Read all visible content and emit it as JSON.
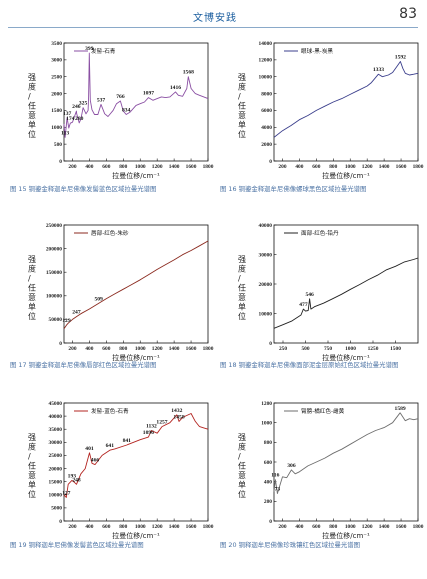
{
  "header": {
    "title": "文博安践",
    "page_number": "83"
  },
  "chart_data": [
    {
      "type": "line",
      "caption": "图 15  铜鎏金释迦牟尼佛像发髻蓝色区域拉曼光谱图",
      "legend": "发髻-石青",
      "ylabel": "强度/任意单位",
      "xlabel": "拉曼位移/cm⁻¹",
      "xlim": [
        100,
        1800
      ],
      "ylim": [
        0,
        3500
      ],
      "yticks": [
        0,
        500,
        1000,
        1500,
        2000,
        2500,
        3000,
        3500
      ],
      "xticks": [
        200,
        400,
        600,
        800,
        1000,
        1200,
        1400,
        1600,
        1800
      ],
      "color": "#8a4fa3",
      "series": {
        "x": [
          100,
          113,
          137,
          157,
          174,
          200,
          246,
          250,
          280,
          300,
          325,
          360,
          385,
          390,
          399,
          410,
          430,
          460,
          500,
          537,
          580,
          620,
          680,
          720,
          766,
          800,
          834,
          880,
          950,
          1000,
          1050,
          1097,
          1150,
          1200,
          1250,
          1300,
          1350,
          1416,
          1450,
          1500,
          1550,
          1568,
          1600,
          1650,
          1700,
          1750,
          1800
        ],
        "y": [
          1100,
          700,
          1280,
          980,
          1120,
          1150,
          1480,
          1400,
          1130,
          1250,
          1580,
          1400,
          1500,
          1900,
          3200,
          1800,
          1520,
          1380,
          1380,
          1680,
          1400,
          1320,
          1500,
          1700,
          1780,
          1480,
          1380,
          1450,
          1650,
          1700,
          1750,
          1880,
          1800,
          1850,
          1900,
          1880,
          1900,
          2050,
          1950,
          1920,
          2150,
          2500,
          2150,
          2000,
          1950,
          1900,
          1850
        ]
      },
      "annotations": [
        {
          "label": "113",
          "x": 113,
          "y": 700
        },
        {
          "label": "137",
          "x": 137,
          "y": 1280
        },
        {
          "label": "174",
          "x": 174,
          "y": 1120
        },
        {
          "label": "246",
          "x": 246,
          "y": 1480
        },
        {
          "label": "280",
          "x": 280,
          "y": 1130
        },
        {
          "label": "325",
          "x": 325,
          "y": 1580
        },
        {
          "label": "399",
          "x": 399,
          "y": 3200
        },
        {
          "label": "537",
          "x": 537,
          "y": 1680
        },
        {
          "label": "766",
          "x": 766,
          "y": 1780
        },
        {
          "label": "834",
          "x": 834,
          "y": 1380
        },
        {
          "label": "1097",
          "x": 1097,
          "y": 1880
        },
        {
          "label": "1416",
          "x": 1416,
          "y": 2050
        },
        {
          "label": "1568",
          "x": 1568,
          "y": 2500
        }
      ]
    },
    {
      "type": "line",
      "caption": "图 16  铜鎏金释迦牟尼佛像螺球黑色区域拉曼光谱图",
      "legend": "眼球-黑-炭黑",
      "ylabel": "强度/任意单位",
      "xlabel": "拉曼位移/cm⁻¹",
      "xlim": [
        100,
        1800
      ],
      "ylim": [
        0,
        14000
      ],
      "yticks": [
        0,
        2000,
        4000,
        6000,
        8000,
        10000,
        12000,
        14000
      ],
      "xticks": [
        200,
        400,
        600,
        800,
        1000,
        1200,
        1400,
        1600,
        1800
      ],
      "color": "#3b3f8c",
      "series": {
        "x": [
          100,
          200,
          300,
          400,
          500,
          600,
          700,
          800,
          900,
          1000,
          1100,
          1200,
          1250,
          1300,
          1333,
          1380,
          1450,
          1500,
          1550,
          1592,
          1620,
          1650,
          1700,
          1750,
          1800
        ],
        "y": [
          2800,
          3600,
          4200,
          4900,
          5400,
          6000,
          6500,
          7000,
          7400,
          7900,
          8400,
          8900,
          9300,
          9900,
          10300,
          10000,
          10200,
          10500,
          11200,
          11800,
          11000,
          10400,
          10200,
          10300,
          10400
        ]
      },
      "annotations": [
        {
          "label": "1333",
          "x": 1333,
          "y": 10300
        },
        {
          "label": "1592",
          "x": 1592,
          "y": 11800
        }
      ]
    },
    {
      "type": "line",
      "caption": "图 17  铜鎏金释迦牟尼佛像唇部红色区域拉曼光谱图",
      "legend": "唇部-红色-朱砂",
      "ylabel": "强度/任意单位",
      "xlabel": "拉曼位移/cm⁻¹",
      "xlim": [
        100,
        1800
      ],
      "ylim": [
        0,
        250000
      ],
      "yticks": [
        0,
        50000,
        100000,
        150000,
        200000,
        250000
      ],
      "xticks": [
        200,
        400,
        600,
        800,
        1000,
        1200,
        1400,
        1600,
        1800
      ],
      "color": "#8b2a1f",
      "series": {
        "x": [
          100,
          129,
          150,
          200,
          247,
          300,
          400,
          509,
          600,
          700,
          800,
          900,
          1000,
          1100,
          1200,
          1300,
          1400,
          1500,
          1600,
          1700,
          1800
        ],
        "y": [
          30000,
          38000,
          42000,
          50000,
          56000,
          62000,
          72000,
          84000,
          94000,
          104000,
          114000,
          124000,
          134000,
          145000,
          156000,
          166000,
          176000,
          187000,
          196000,
          206000,
          216000
        ]
      },
      "annotations": [
        {
          "label": "129",
          "x": 129,
          "y": 38000
        },
        {
          "label": "247",
          "x": 247,
          "y": 56000
        },
        {
          "label": "509",
          "x": 509,
          "y": 84000
        }
      ]
    },
    {
      "type": "line",
      "caption": "图 18  铜鎏金释迦牟尼佛像面部泥金层原始红色区域拉曼光谱图",
      "legend": "面部-红色-铅丹",
      "ylabel": "强度/任意单位",
      "xlabel": "拉曼位移/cm⁻¹",
      "xlim": [
        150,
        1750
      ],
      "ylim": [
        0,
        40000
      ],
      "yticks": [
        0,
        10000,
        20000,
        30000,
        40000
      ],
      "xticks": [
        250,
        500,
        750,
        1000,
        1250,
        1500
      ],
      "color": "#222222",
      "series": {
        "x": [
          150,
          250,
          350,
          450,
          477,
          500,
          530,
          546,
          560,
          600,
          700,
          800,
          900,
          1000,
          1100,
          1200,
          1300,
          1400,
          1500,
          1600,
          1700,
          1750
        ],
        "y": [
          5000,
          6200,
          7500,
          9500,
          11500,
          10800,
          11000,
          15000,
          11500,
          12300,
          13500,
          15000,
          16500,
          18200,
          19800,
          21500,
          23000,
          24800,
          26000,
          27500,
          28300,
          28800
        ]
      },
      "annotations": [
        {
          "label": "477",
          "x": 477,
          "y": 11500
        },
        {
          "label": "546",
          "x": 546,
          "y": 15000
        }
      ]
    },
    {
      "type": "line",
      "caption": "图 19  铜释迦牟尼佛像发髻蓝色区域拉曼光谱图",
      "legend": "发髻-蓝色-石青",
      "ylabel": "强度/任意单位",
      "xlabel": "拉曼位移/cm⁻¹",
      "xlim": [
        100,
        1800
      ],
      "ylim": [
        0,
        45000
      ],
      "yticks": [
        0,
        5000,
        10000,
        15000,
        20000,
        25000,
        30000,
        35000,
        40000,
        45000
      ],
      "xticks": [
        200,
        400,
        600,
        800,
        1000,
        1200,
        1400,
        1600,
        1800
      ],
      "color": "#b32420",
      "series": {
        "x": [
          100,
          127,
          150,
          193,
          220,
          248,
          300,
          350,
          401,
          430,
          466,
          550,
          641,
          700,
          841,
          1000,
          1096,
          1132,
          1200,
          1257,
          1350,
          1432,
          1458,
          1500,
          1600,
          1650,
          1700,
          1750,
          1800
        ],
        "y": [
          10000,
          9000,
          14000,
          15500,
          14800,
          14000,
          18000,
          20000,
          26000,
          22000,
          21500,
          25000,
          27000,
          27500,
          29000,
          31000,
          32000,
          34500,
          33500,
          36000,
          37500,
          40500,
          38000,
          39500,
          41000,
          38000,
          36000,
          35500,
          35000
        ]
      },
      "annotations": [
        {
          "label": "127",
          "x": 127,
          "y": 9000
        },
        {
          "label": "193",
          "x": 193,
          "y": 15500
        },
        {
          "label": "248",
          "x": 248,
          "y": 14000
        },
        {
          "label": "401",
          "x": 401,
          "y": 26000
        },
        {
          "label": "466",
          "x": 466,
          "y": 21500
        },
        {
          "label": "641",
          "x": 641,
          "y": 27000
        },
        {
          "label": "841",
          "x": 841,
          "y": 29000
        },
        {
          "label": "1096",
          "x": 1096,
          "y": 32000
        },
        {
          "label": "1132",
          "x": 1132,
          "y": 34500
        },
        {
          "label": "1257",
          "x": 1257,
          "y": 36000
        },
        {
          "label": "1432",
          "x": 1432,
          "y": 40500
        },
        {
          "label": "1458",
          "x": 1458,
          "y": 38000
        }
      ]
    },
    {
      "type": "line",
      "caption": "图 20  铜释迦牟尼佛像珍珠镶红色区域拉曼光谱图",
      "legend": "臂膀-橘红色-雌黄",
      "ylabel": "强度/任意单位",
      "xlabel": "拉曼位移/cm⁻¹",
      "xlim": [
        100,
        1800
      ],
      "ylim": [
        0,
        1200
      ],
      "yticks": [
        0,
        200,
        400,
        600,
        800,
        1000,
        1200
      ],
      "xticks": [
        200,
        400,
        600,
        800,
        1000,
        1200,
        1400,
        1600,
        1800
      ],
      "color": "#6e6e6e",
      "series": {
        "x": [
          100,
          116,
          140,
          200,
          250,
          306,
          350,
          400,
          500,
          600,
          700,
          800,
          900,
          1000,
          1100,
          1200,
          1300,
          1400,
          1500,
          1589,
          1650,
          1700,
          1750,
          1800
        ],
        "y": [
          300,
          420,
          280,
          450,
          440,
          520,
          480,
          500,
          560,
          600,
          640,
          690,
          730,
          780,
          830,
          880,
          920,
          950,
          1000,
          1100,
          1020,
          1040,
          1030,
          1040
        ]
      },
      "annotations": [
        {
          "label": "73",
          "x": 140,
          "y": 280
        },
        {
          "label": "116",
          "x": 116,
          "y": 420
        },
        {
          "label": "306",
          "x": 306,
          "y": 520
        },
        {
          "label": "1589",
          "x": 1589,
          "y": 1100
        }
      ]
    }
  ]
}
